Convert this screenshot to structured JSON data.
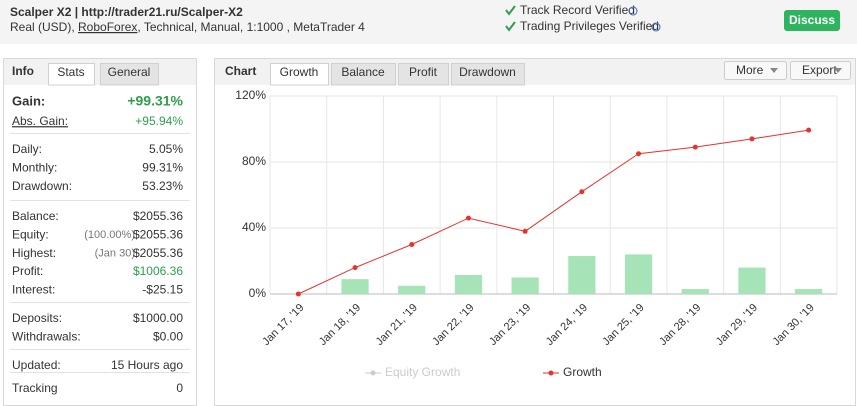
{
  "header": {
    "title": "Scalper X2 | http://trader21.ru/Scalper-X2",
    "subtitle": [
      "Real (USD), ",
      "RoboForex",
      ", Technical, Manual, 1:1000 , MetaTrader 4"
    ],
    "verified": [
      "Track Record Verified",
      "Trading Privileges Verified"
    ],
    "button": "Discuss"
  },
  "info": {
    "label": "Info",
    "tabs": [
      "Stats",
      "General"
    ],
    "groups": [
      [
        {
          "label": "Gain:",
          "value": "+99.31%",
          "color": "#2e9e4f"
        },
        {
          "label": "Abs. Gain:",
          "value": "+95.94%",
          "color": "#2e9e4f"
        }
      ],
      [
        {
          "label": "Daily:",
          "value": "5.05%"
        },
        {
          "label": "Monthly:",
          "value": "99.31%"
        },
        {
          "label": "Drawdown:",
          "value": "53.23%"
        }
      ],
      [
        {
          "label": "Balance:",
          "value": "$2055.36"
        },
        {
          "label": "Equity:",
          "note": "(100.00%)",
          "value": "$2055.36"
        },
        {
          "label": "Highest:",
          "note": "(Jan 30)",
          "value": "$2055.36"
        },
        {
          "label": "Profit:",
          "value": "$1006.36",
          "color": "#2e9e4f"
        },
        {
          "label": "Interest:",
          "value": "-$25.15"
        }
      ],
      [
        {
          "label": "Deposits:",
          "value": "$1000.00"
        },
        {
          "label": "Withdrawals:",
          "value": "$0.00"
        }
      ],
      [
        {
          "label": "Updated:",
          "value": "15 Hours ago"
        }
      ],
      [
        {
          "label": "Tracking",
          "value": "0"
        }
      ]
    ]
  },
  "chart_panel": {
    "label": "Chart",
    "tabs": [
      "Growth",
      "Balance",
      "Profit",
      "Drawdown"
    ],
    "buttons": [
      "More",
      "Export"
    ]
  },
  "chart_data": {
    "type": "line",
    "categories": [
      "Jan 17, '19",
      "Jan 18, '19",
      "Jan 21, '19",
      "Jan 22, '19",
      "Jan 23, '19",
      "Jan 24, '19",
      "Jan 25, '19",
      "Jan 28, '19",
      "Jan 29, '19",
      "Jan 30, '19"
    ],
    "bars": {
      "color": "#a6e3b7",
      "values": [
        0,
        9,
        5,
        11.5,
        10,
        23,
        24,
        3,
        16,
        3
      ]
    },
    "series": [
      {
        "name": "Equity Growth",
        "color": "#cccccc",
        "visible": false
      },
      {
        "name": "Growth",
        "color": "#e8322e",
        "values": [
          0,
          16,
          30,
          46,
          38,
          62,
          85,
          89,
          94,
          99.31
        ]
      }
    ],
    "ylim": [
      0,
      120
    ],
    "yticks": [
      {
        "value": 0,
        "label": "0%"
      },
      {
        "value": 40,
        "label": "40%"
      },
      {
        "value": 80,
        "label": "80%"
      },
      {
        "value": 120,
        "label": "120%"
      }
    ],
    "grid": true
  }
}
